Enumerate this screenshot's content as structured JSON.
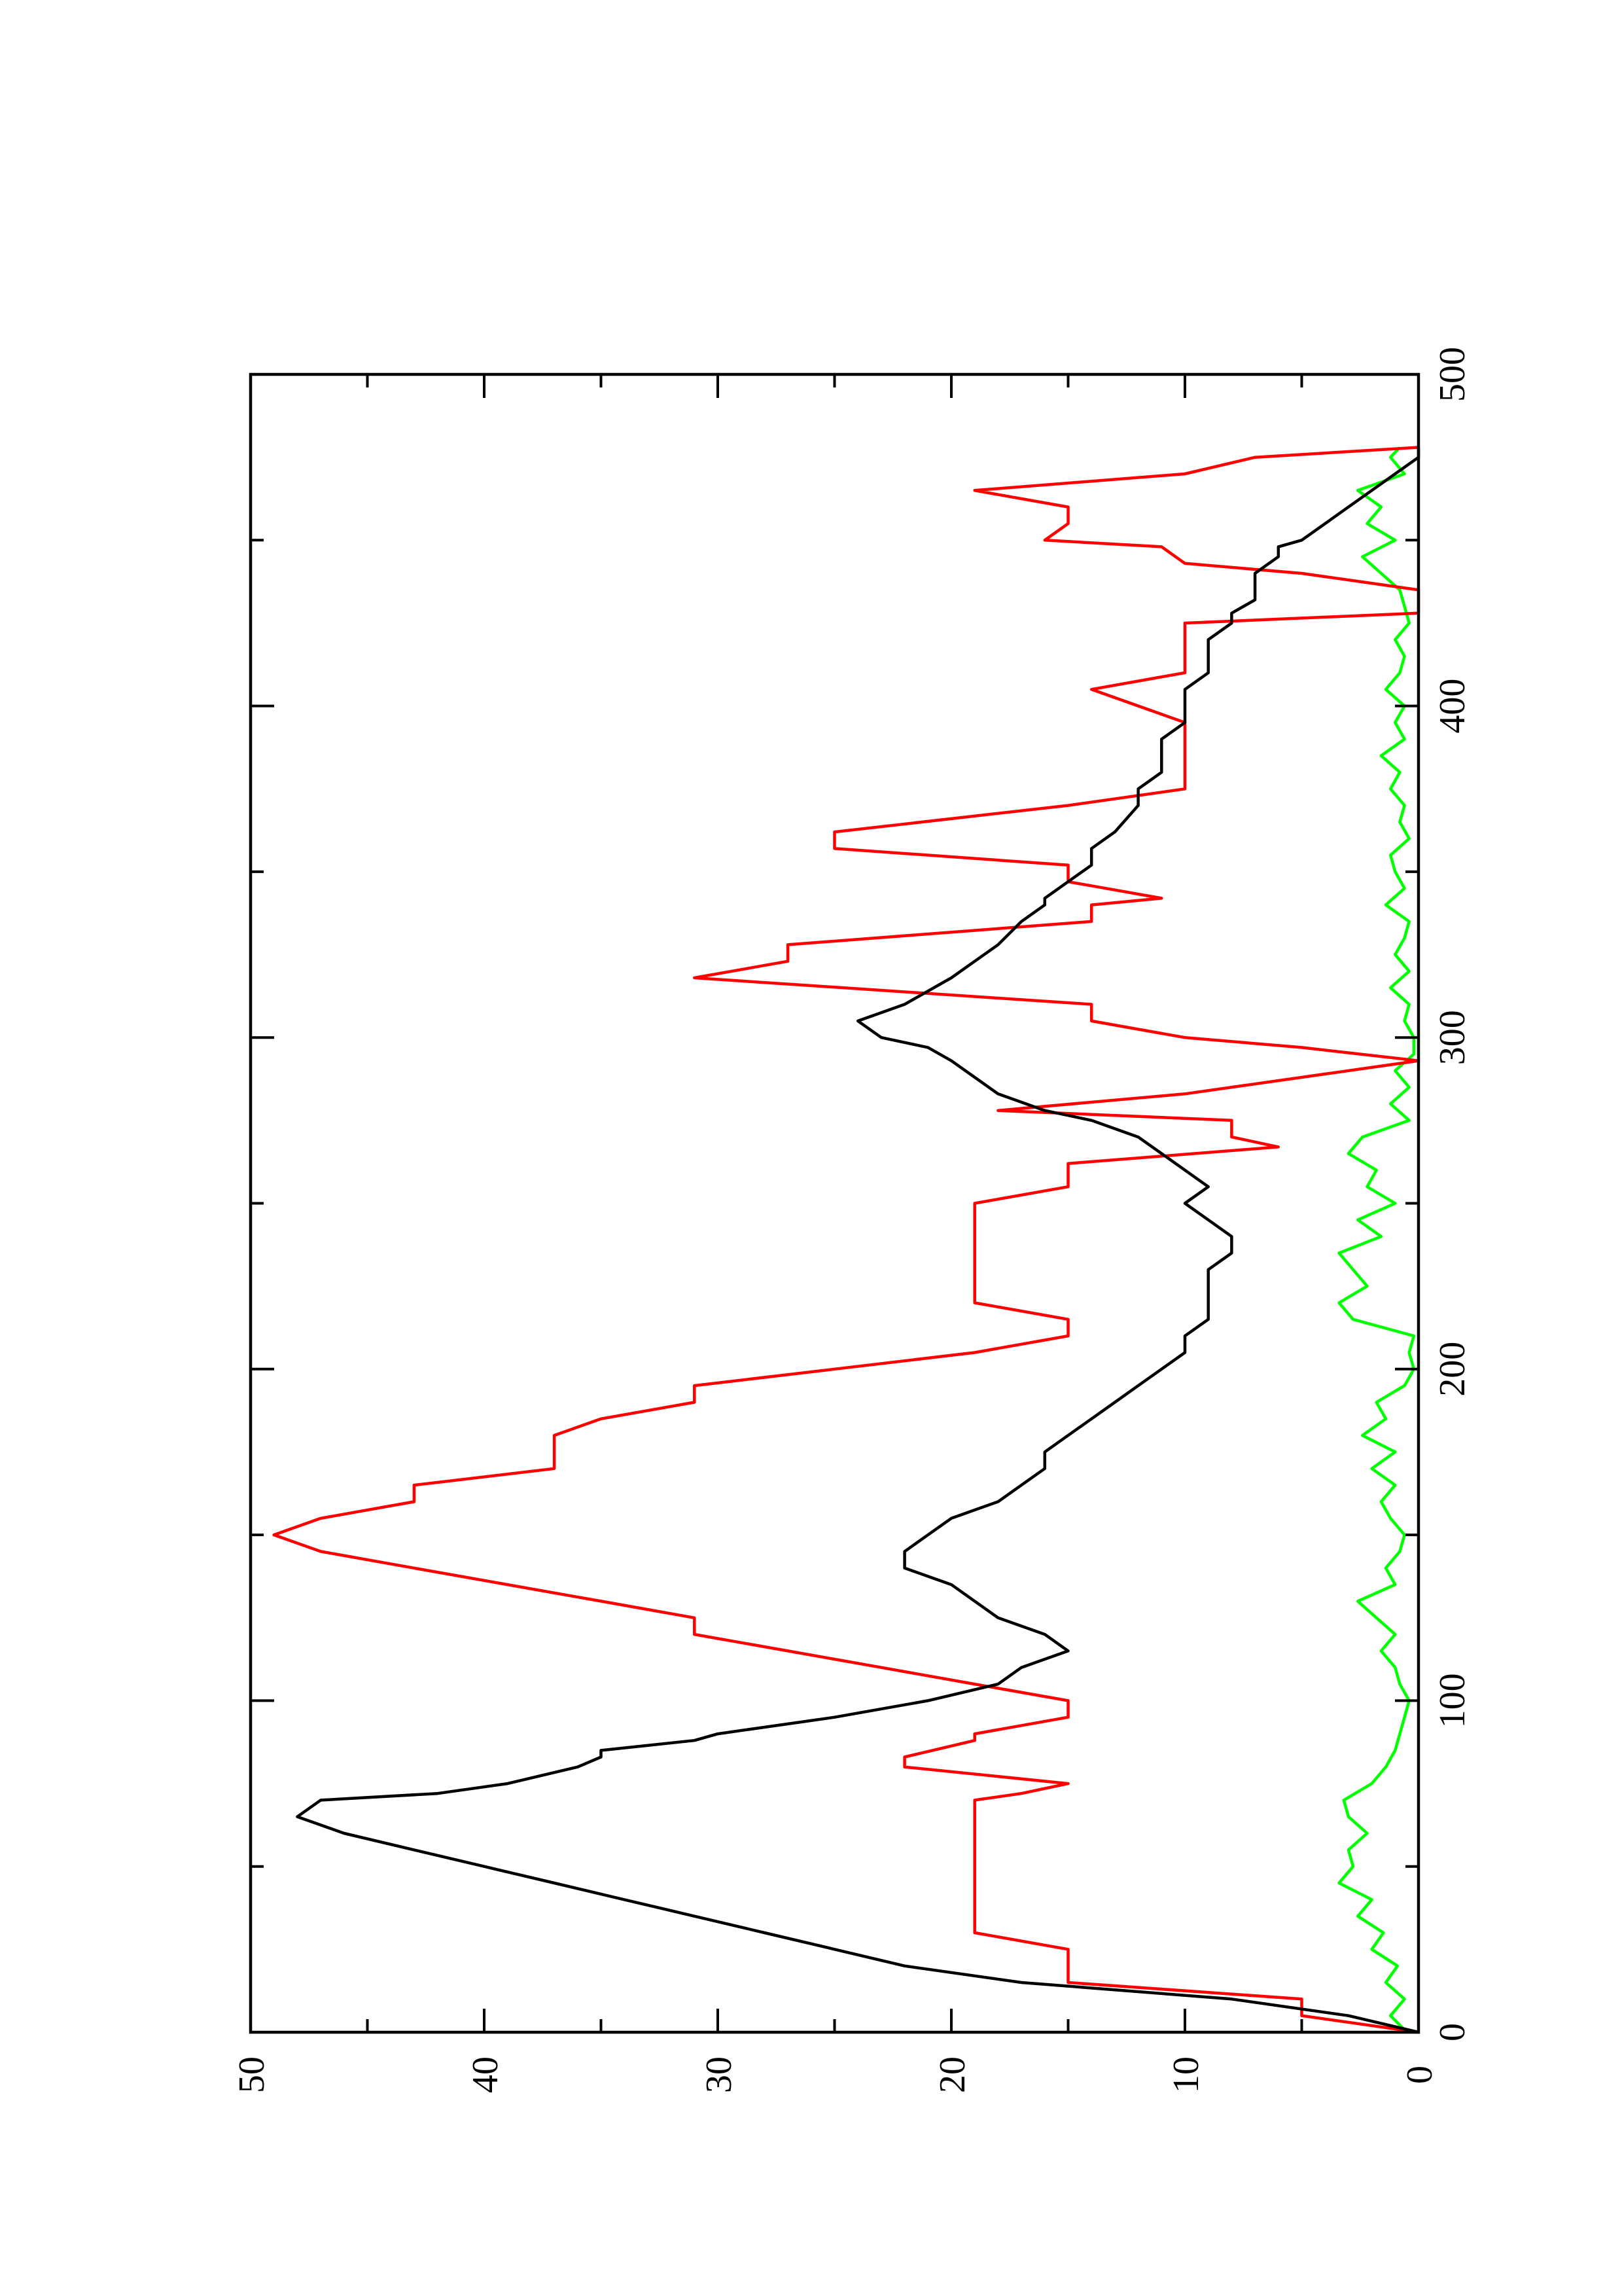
{
  "chart_data": {
    "type": "line",
    "title": "",
    "xlabel": "",
    "ylabel": "",
    "orientation": "rotated 90° counter-clockwise (page printed in landscape)",
    "xlim": [
      0,
      500
    ],
    "ylim": [
      0,
      50
    ],
    "x_ticks_major": [
      0,
      100,
      200,
      300,
      400,
      500
    ],
    "x_tick_labels": [
      "0",
      "100",
      "200",
      "300",
      "400",
      "500"
    ],
    "x_ticks_minor": [
      50,
      150,
      250,
      350,
      450
    ],
    "y_ticks_major": [
      0,
      10,
      20,
      30,
      40,
      50
    ],
    "y_tick_labels": [
      "0",
      "10",
      "20",
      "30",
      "40",
      "50"
    ],
    "y_ticks_minor": [
      5,
      15,
      25,
      35,
      45
    ],
    "grid": false,
    "legend": "none",
    "series": [
      {
        "color": "#ff0000",
        "style": "stepped line",
        "x": [
          0,
          5,
          10,
          15,
          25,
          30,
          70,
          72,
          75,
          80,
          83,
          88,
          90,
          95,
          100,
          105,
          110,
          115,
          120,
          125,
          130,
          135,
          140,
          145,
          150,
          155,
          160,
          165,
          170,
          175,
          180,
          185,
          190,
          195,
          200,
          205,
          210,
          215,
          220,
          225,
          250,
          255,
          262,
          267,
          270,
          275,
          278,
          283,
          288,
          293,
          297,
          300,
          305,
          310,
          318,
          323,
          328,
          335,
          340,
          342,
          347,
          352,
          357,
          362,
          370,
          375,
          385,
          390,
          395,
          405,
          410,
          420,
          425,
          428,
          432,
          435,
          440,
          443,
          448,
          450,
          455,
          460,
          465,
          470,
          475,
          478
        ],
        "y": [
          0,
          5,
          5,
          15,
          15,
          19,
          19,
          17,
          15,
          22,
          22,
          19,
          19,
          15,
          15,
          19,
          23,
          27,
          31,
          31,
          35,
          39,
          43,
          47,
          49,
          47,
          43,
          43,
          37,
          37,
          37,
          35,
          31,
          31,
          25,
          19,
          15,
          15,
          19,
          19,
          19,
          15,
          15,
          6,
          8,
          8,
          18,
          10,
          5,
          0,
          5,
          10,
          14,
          14,
          31,
          27,
          27,
          14,
          14,
          11,
          15,
          15,
          25,
          25,
          15,
          10,
          10,
          10,
          10,
          14,
          10,
          10,
          10,
          0,
          0,
          0,
          5,
          10,
          11,
          16,
          15,
          15,
          19,
          10,
          7,
          0
        ]
      },
      {
        "color": "#000000",
        "style": "line",
        "x": [
          0,
          5,
          10,
          15,
          20,
          25,
          30,
          35,
          40,
          45,
          50,
          55,
          60,
          65,
          70,
          72,
          75,
          80,
          83,
          85,
          88,
          90,
          95,
          100,
          105,
          110,
          115,
          120,
          125,
          130,
          135,
          140,
          145,
          150,
          155,
          160,
          165,
          170,
          175,
          180,
          185,
          190,
          195,
          200,
          205,
          210,
          215,
          220,
          225,
          230,
          235,
          240,
          245,
          250,
          255,
          260,
          265,
          270,
          275,
          278,
          283,
          288,
          293,
          297,
          300,
          305,
          310,
          318,
          323,
          328,
          335,
          340,
          342,
          347,
          352,
          357,
          362,
          370,
          375,
          380,
          385,
          390,
          395,
          400,
          405,
          410,
          415,
          420,
          425,
          428,
          432,
          435,
          440,
          445,
          448,
          450,
          455,
          460,
          465,
          470,
          475,
          478
        ],
        "y": [
          0,
          3,
          8,
          17,
          22,
          25,
          28,
          31,
          34,
          37,
          40,
          43,
          46,
          48,
          47,
          42,
          39,
          36,
          35,
          35,
          31,
          30,
          25,
          21,
          18,
          17,
          15,
          16,
          18,
          19,
          20,
          22,
          22,
          21,
          20,
          18,
          17,
          16,
          16,
          15,
          14,
          13,
          12,
          11,
          10,
          10,
          9,
          9,
          9,
          9,
          8,
          8,
          9,
          10,
          9,
          10,
          11,
          12,
          14,
          16,
          18,
          19,
          20,
          21,
          23,
          24,
          22,
          20,
          19,
          18,
          17,
          16,
          16,
          15,
          14,
          14,
          13,
          12,
          12,
          11,
          11,
          11,
          10,
          10,
          10,
          9,
          9,
          9,
          8,
          8,
          7,
          7,
          7,
          6,
          6,
          5,
          4,
          3,
          2,
          1,
          0,
          0
        ]
      },
      {
        "color": "#00ff00",
        "style": "noisy line",
        "x": [
          0,
          5,
          10,
          15,
          20,
          25,
          30,
          35,
          40,
          45,
          50,
          55,
          60,
          65,
          70,
          75,
          80,
          85,
          90,
          95,
          100,
          105,
          110,
          115,
          120,
          125,
          130,
          135,
          140,
          145,
          150,
          155,
          160,
          165,
          170,
          175,
          180,
          185,
          190,
          195,
          200,
          205,
          210,
          215,
          220,
          225,
          230,
          235,
          240,
          245,
          250,
          255,
          260,
          265,
          270,
          275,
          280,
          285,
          290,
          295,
          300,
          305,
          310,
          315,
          320,
          325,
          330,
          335,
          340,
          345,
          350,
          355,
          360,
          365,
          370,
          375,
          380,
          385,
          390,
          395,
          400,
          405,
          410,
          415,
          420,
          425,
          430,
          435,
          440,
          445,
          450,
          455,
          460,
          465,
          470,
          475,
          478
        ],
        "y": [
          0.5,
          1.2,
          0.6,
          1.4,
          0.9,
          2.0,
          1.5,
          2.6,
          2.0,
          3.4,
          2.8,
          3.0,
          2.2,
          3.0,
          3.2,
          2.0,
          1.4,
          1.0,
          0.8,
          0.6,
          0.4,
          0.8,
          1.0,
          1.6,
          1.0,
          1.8,
          2.6,
          1.0,
          1.4,
          0.8,
          0.6,
          1.2,
          1.6,
          1.0,
          2.0,
          1.0,
          2.4,
          1.4,
          1.8,
          0.6,
          0.2,
          0.4,
          0.2,
          2.8,
          3.4,
          2.2,
          2.8,
          3.4,
          1.6,
          2.6,
          1.0,
          2.2,
          1.8,
          3.0,
          2.4,
          0.4,
          1.2,
          0.4,
          1.0,
          0.2,
          0.2,
          0.6,
          0.4,
          1.2,
          0.4,
          1.0,
          0.6,
          0.4,
          1.4,
          0.6,
          1.0,
          1.2,
          0.4,
          0.8,
          0.6,
          1.2,
          0.8,
          1.6,
          0.6,
          1.0,
          0.6,
          1.4,
          0.8,
          0.6,
          1.0,
          0.4,
          0.6,
          0.8,
          1.6,
          2.4,
          1.0,
          2.2,
          1.6,
          2.6,
          0.6,
          1.2,
          0.8
        ]
      }
    ]
  }
}
